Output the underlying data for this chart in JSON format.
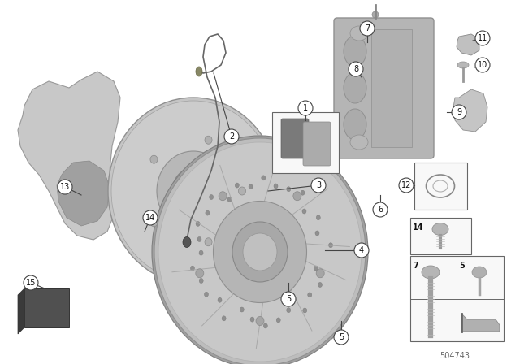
{
  "background_color": "#ffffff",
  "fig_width": 6.4,
  "fig_height": 4.48,
  "dpi": 100,
  "part_number": "504743",
  "line_color": "#444444",
  "text_color": "#111111",
  "callout_fill": "#ffffff",
  "callout_edge": "#444444",
  "box_edge_color": "#666666",
  "disc_outer_color": "#b8b8b8",
  "disc_rim_color": "#d0d0d0",
  "disc_hub_color": "#a8a8a8",
  "disc_hole_color": "#909090",
  "shield_color": "#c8c8c8",
  "shield_dark": "#a0a0a0",
  "caliper_color": "#b5b5b5",
  "pad_dark": "#808080",
  "pad_light": "#aaaaaa",
  "sensor_color": "#666666",
  "rubber_color": "#505050"
}
